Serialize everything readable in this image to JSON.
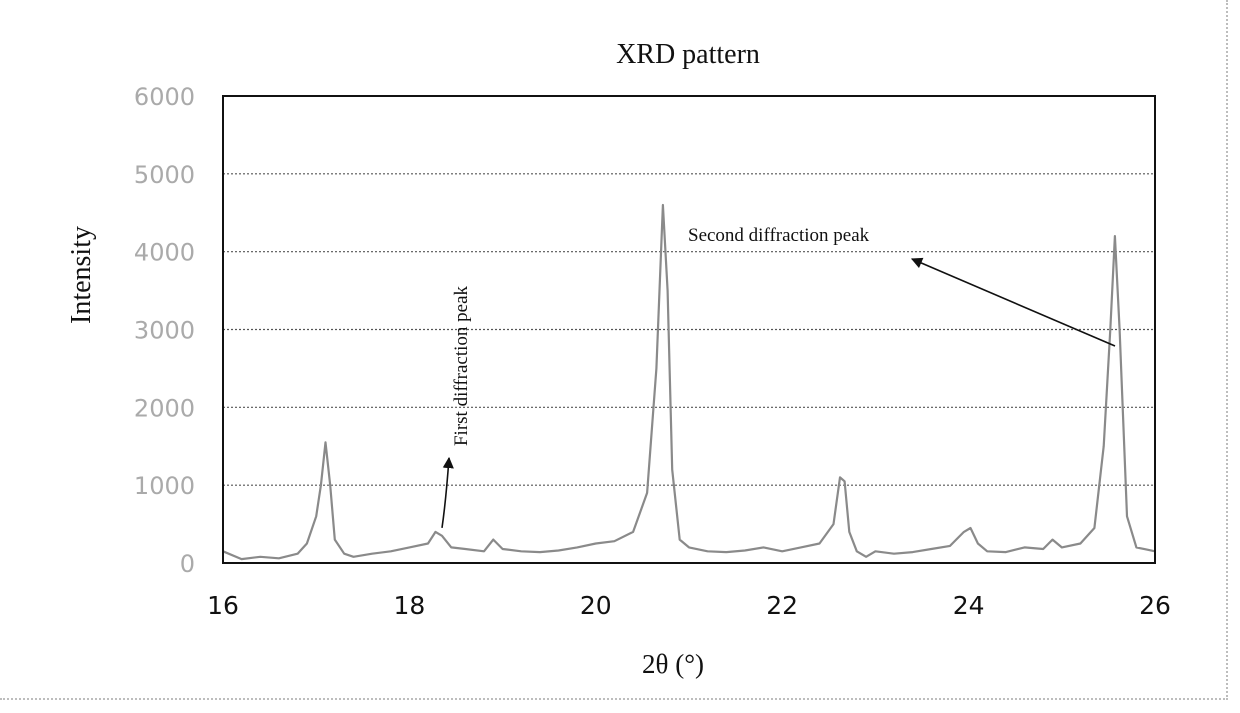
{
  "chart_data": {
    "type": "line",
    "title": "XRD pattern",
    "xlabel": "2θ (°)",
    "ylabel": "Intensity",
    "xlim": [
      16,
      26
    ],
    "ylim": [
      0,
      6000
    ],
    "xticks": [
      16,
      18,
      20,
      22,
      24,
      26
    ],
    "yticks": [
      0,
      1000,
      2000,
      3000,
      4000,
      5000,
      6000
    ],
    "grid": "horizontal",
    "legend": "none",
    "line_color": "#8a8a8a",
    "series": [
      {
        "x": [
          16.0,
          16.2,
          16.4,
          16.6,
          16.8,
          16.9,
          17.0,
          17.05,
          17.1,
          17.15,
          17.2,
          17.3,
          17.4,
          17.6,
          17.8,
          18.0,
          18.2,
          18.28,
          18.35,
          18.45,
          18.6,
          18.8,
          18.9,
          19.0,
          19.2,
          19.4,
          19.6,
          19.8,
          20.0,
          20.2,
          20.4,
          20.55,
          20.65,
          20.72,
          20.77,
          20.82,
          20.9,
          21.0,
          21.2,
          21.4,
          21.6,
          21.8,
          22.0,
          22.2,
          22.4,
          22.55,
          22.62,
          22.67,
          22.72,
          22.8,
          22.9,
          23.0,
          23.2,
          23.4,
          23.6,
          23.8,
          23.95,
          24.02,
          24.1,
          24.2,
          24.4,
          24.6,
          24.8,
          24.9,
          25.0,
          25.2,
          25.35,
          25.45,
          25.52,
          25.57,
          25.62,
          25.7,
          25.8,
          26.0
        ],
        "y": [
          150,
          50,
          80,
          60,
          120,
          250,
          600,
          1000,
          1550,
          1000,
          300,
          120,
          80,
          120,
          150,
          200,
          250,
          400,
          350,
          200,
          180,
          150,
          300,
          180,
          150,
          140,
          160,
          200,
          250,
          280,
          400,
          900,
          2500,
          4600,
          3500,
          1200,
          300,
          200,
          150,
          140,
          160,
          200,
          150,
          200,
          250,
          500,
          1100,
          1050,
          400,
          150,
          80,
          150,
          120,
          140,
          180,
          220,
          400,
          450,
          250,
          150,
          140,
          200,
          180,
          300,
          200,
          250,
          450,
          1500,
          3000,
          4200,
          3000,
          600,
          200,
          150
        ]
      }
    ],
    "annotations": [
      {
        "text": "First diffraction peak",
        "target": [
          18.35,
          400
        ]
      },
      {
        "text": "Second diffraction peak",
        "target": [
          25.57,
          2800
        ]
      }
    ]
  }
}
